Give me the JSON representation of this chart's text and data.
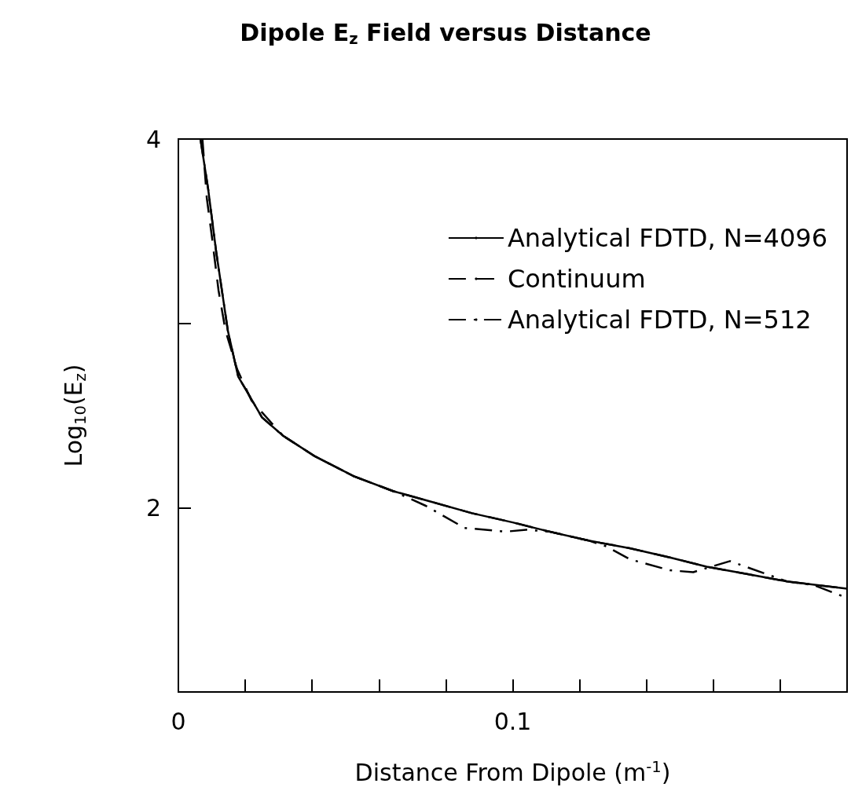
{
  "chart_data": {
    "type": "line",
    "title": "Dipole E$_{z}$ Field versus Distance",
    "xlabel": "Distance From Dipole (m$^{-1}$)",
    "ylabel": "Log$_{10}$(E$_{z}$)",
    "xlim": [
      0,
      0.2
    ],
    "ylim": [
      1,
      4
    ],
    "xticks": [
      0,
      {
        "value": 0.02,
        "label": null
      },
      {
        "value": 0.04,
        "label": null
      },
      {
        "value": 0.06,
        "label": null
      },
      {
        "value": 0.08,
        "label": null
      },
      0.1,
      {
        "value": 0.12,
        "label": null
      },
      {
        "value": 0.14,
        "label": null
      },
      {
        "value": 0.16,
        "label": null
      },
      {
        "value": 0.18,
        "label": null
      },
      {
        "value": 0.2,
        "label": null
      }
    ],
    "yticks": [
      {
        "value": 1,
        "label": null
      },
      2,
      {
        "value": 3,
        "label": null
      },
      4
    ],
    "grid": false,
    "legend": "top right",
    "marker": "none",
    "series": [
      {
        "name": "Analytical FDTD, N=4096",
        "color": "#000000",
        "line_style": "solid",
        "x": [
          0.0066,
          0.0089,
          0.0113,
          0.0148,
          0.0179,
          0.0202,
          0.025,
          0.0313,
          0.0407,
          0.0525,
          0.0642,
          0.076,
          0.0878,
          0.1,
          0.111,
          0.123,
          0.135,
          0.147,
          0.158,
          0.17,
          0.182,
          0.2
        ],
        "values": [
          4.0,
          3.73,
          3.39,
          2.96,
          2.71,
          2.64,
          2.49,
          2.39,
          2.28,
          2.17,
          2.09,
          2.03,
          1.97,
          1.92,
          1.87,
          1.82,
          1.78,
          1.73,
          1.68,
          1.64,
          1.6,
          1.56
        ]
      },
      {
        "name": "Continuum",
        "color": "#000000",
        "line_style": "dashed",
        "x": [
          0.0072,
          0.0085,
          0.0101,
          0.012,
          0.0141,
          0.0176,
          0.0219,
          0.0313,
          0.0407,
          0.0525,
          0.0642,
          0.076,
          0.0878,
          0.1,
          0.111,
          0.123,
          0.135,
          0.147,
          0.158,
          0.17,
          0.182,
          0.2
        ],
        "values": [
          4.0,
          3.68,
          3.46,
          3.18,
          2.96,
          2.75,
          2.58,
          2.39,
          2.28,
          2.17,
          2.09,
          2.03,
          1.97,
          1.92,
          1.87,
          1.82,
          1.78,
          1.73,
          1.68,
          1.64,
          1.6,
          1.56
        ]
      },
      {
        "name": "Analytical FDTD, N=512",
        "color": "#000000",
        "line_style": "dashdot",
        "x": [
          0.0066,
          0.0089,
          0.0113,
          0.0148,
          0.0179,
          0.0202,
          0.025,
          0.0313,
          0.0407,
          0.0525,
          0.0642,
          0.074,
          0.0856,
          0.098,
          0.104,
          0.111,
          0.123,
          0.128,
          0.135,
          0.147,
          0.154,
          0.165,
          0.182,
          0.19,
          0.2
        ],
        "values": [
          4.0,
          3.73,
          3.39,
          2.96,
          2.71,
          2.64,
          2.49,
          2.39,
          2.28,
          2.17,
          2.09,
          2.01,
          1.89,
          1.87,
          1.88,
          1.87,
          1.82,
          1.79,
          1.72,
          1.66,
          1.65,
          1.71,
          1.6,
          1.58,
          1.51
        ]
      }
    ]
  }
}
